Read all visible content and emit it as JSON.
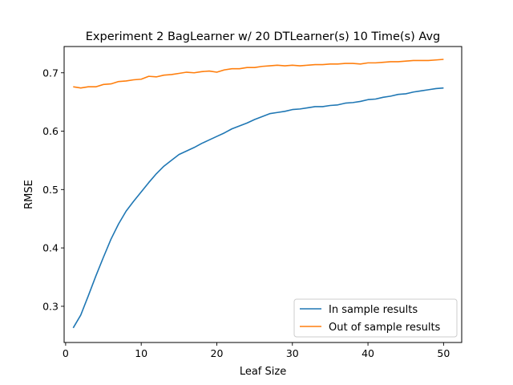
{
  "chart_data": {
    "type": "line",
    "title": "Experiment 2 BagLearner w/ 20 DTLearner(s) 10 Time(s) Avg",
    "xlabel": "Leaf Size",
    "ylabel": "RMSE",
    "xlim": [
      -0.2,
      52.4
    ],
    "ylim": [
      0.238,
      0.745
    ],
    "xticks": [
      0,
      10,
      20,
      30,
      40,
      50
    ],
    "yticks": [
      0.3,
      0.4,
      0.5,
      0.6,
      0.7
    ],
    "grid": false,
    "legend": "lower-right",
    "x": [
      1,
      2,
      3,
      4,
      5,
      6,
      7,
      8,
      9,
      10,
      11,
      12,
      13,
      14,
      15,
      16,
      17,
      18,
      19,
      20,
      21,
      22,
      23,
      24,
      25,
      26,
      27,
      28,
      29,
      30,
      31,
      32,
      33,
      34,
      35,
      36,
      37,
      38,
      39,
      40,
      41,
      42,
      43,
      44,
      45,
      46,
      47,
      48,
      49,
      50
    ],
    "series": [
      {
        "name": "In sample results",
        "color": "#1f77b4",
        "values": [
          0.263,
          0.285,
          0.318,
          0.352,
          0.384,
          0.415,
          0.441,
          0.463,
          0.48,
          0.496,
          0.512,
          0.527,
          0.54,
          0.55,
          0.56,
          0.566,
          0.572,
          0.579,
          0.585,
          0.591,
          0.597,
          0.604,
          0.609,
          0.614,
          0.62,
          0.625,
          0.63,
          0.632,
          0.634,
          0.637,
          0.638,
          0.64,
          0.642,
          0.642,
          0.644,
          0.645,
          0.648,
          0.649,
          0.651,
          0.654,
          0.655,
          0.658,
          0.66,
          0.663,
          0.664,
          0.667,
          0.669,
          0.671,
          0.673,
          0.674
        ]
      },
      {
        "name": "Out of sample results",
        "color": "#ff7f0e",
        "values": [
          0.676,
          0.674,
          0.676,
          0.676,
          0.68,
          0.681,
          0.685,
          0.686,
          0.688,
          0.689,
          0.694,
          0.693,
          0.696,
          0.697,
          0.699,
          0.701,
          0.7,
          0.702,
          0.703,
          0.701,
          0.705,
          0.707,
          0.707,
          0.709,
          0.709,
          0.711,
          0.712,
          0.713,
          0.712,
          0.713,
          0.712,
          0.713,
          0.714,
          0.714,
          0.715,
          0.715,
          0.716,
          0.716,
          0.715,
          0.717,
          0.717,
          0.718,
          0.719,
          0.719,
          0.72,
          0.721,
          0.721,
          0.721,
          0.722,
          0.723
        ]
      }
    ]
  }
}
